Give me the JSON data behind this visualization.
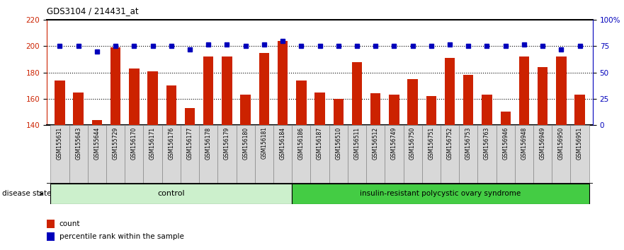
{
  "title": "GDS3104 / 214431_at",
  "samples": [
    "GSM155631",
    "GSM155643",
    "GSM155644",
    "GSM155729",
    "GSM156170",
    "GSM156171",
    "GSM156176",
    "GSM156177",
    "GSM156178",
    "GSM156179",
    "GSM156180",
    "GSM156181",
    "GSM156184",
    "GSM156186",
    "GSM156187",
    "GSM156510",
    "GSM156511",
    "GSM156512",
    "GSM156749",
    "GSM156750",
    "GSM156751",
    "GSM156752",
    "GSM156753",
    "GSM156763",
    "GSM156946",
    "GSM156948",
    "GSM156949",
    "GSM156950",
    "GSM156951"
  ],
  "bar_values": [
    174,
    165,
    144,
    199,
    183,
    181,
    170,
    153,
    192,
    192,
    163,
    195,
    204,
    174,
    165,
    160,
    188,
    164,
    163,
    175,
    162,
    191,
    178,
    163,
    150,
    192,
    184,
    192,
    163
  ],
  "percentile_values": [
    75,
    75,
    70,
    75,
    75,
    75,
    75,
    72,
    77,
    77,
    75,
    77,
    80,
    75,
    75,
    75,
    75,
    75,
    75,
    75,
    75,
    77,
    75,
    75,
    75,
    77,
    75,
    72,
    75
  ],
  "group_labels": [
    "control",
    "insulin-resistant polycystic ovary syndrome"
  ],
  "group_sizes": [
    13,
    16
  ],
  "bar_color": "#CC2200",
  "percentile_color": "#0000BB",
  "ylim_left": [
    140,
    220
  ],
  "ylim_right": [
    0,
    100
  ],
  "yticks_left": [
    140,
    160,
    180,
    200,
    220
  ],
  "ytick_labels_right": [
    "0",
    "25",
    "50",
    "75",
    "100%"
  ],
  "ytick_vals_right": [
    0,
    25,
    50,
    75,
    100
  ],
  "hlines": [
    160,
    180,
    200
  ],
  "disease_state_label": "disease state",
  "legend_count_label": "count",
  "legend_percentile_label": "percentile rank within the sample",
  "ctrl_color": "#ccf0cc",
  "disease_color": "#44cc44",
  "label_bg_color": "#d8d8d8",
  "label_border_color": "#888888"
}
